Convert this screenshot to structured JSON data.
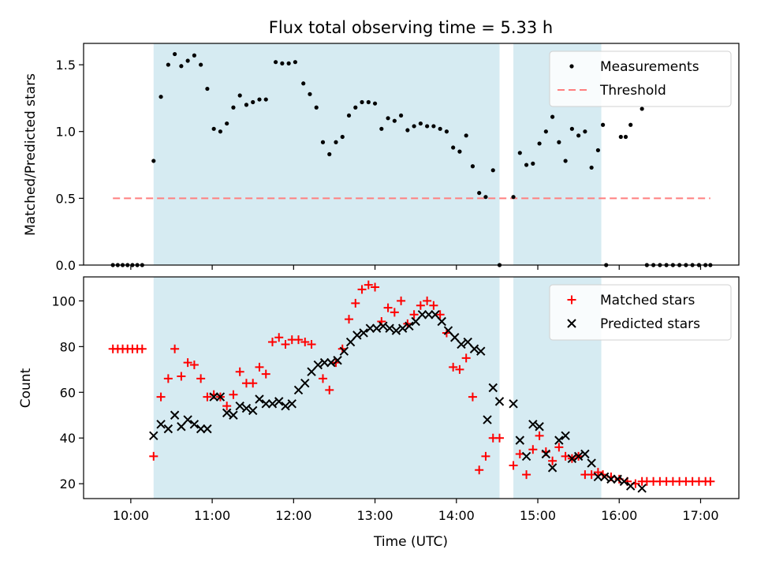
{
  "chart_data": [
    {
      "type": "scatter",
      "title": "Flux total observing time = 5.33 h",
      "xlabel": "",
      "ylabel": "Matched/Predicted stars",
      "xlim": [
        9.42,
        17.47
      ],
      "ylim": [
        0,
        1.66
      ],
      "yticks": [
        0.0,
        0.5,
        1.0,
        1.5
      ],
      "ytick_labels": [
        "0.0",
        "0.5",
        "1.0",
        "1.5"
      ],
      "legend": {
        "placement": "top-right",
        "entries": [
          "Measurements",
          "Threshold"
        ]
      },
      "shaded_intervals": [
        [
          10.28,
          14.53
        ],
        [
          14.7,
          15.78
        ]
      ],
      "threshold": {
        "name": "Threshold",
        "y": 0.5,
        "x": [
          9.78,
          17.12
        ],
        "color": "#ff7f7f"
      },
      "series": [
        {
          "name": "Measurements",
          "marker": "dot",
          "color": "#000000",
          "points": [
            [
              9.78,
              0
            ],
            [
              9.84,
              0
            ],
            [
              9.9,
              0
            ],
            [
              9.96,
              0
            ],
            [
              10.02,
              0
            ],
            [
              10.08,
              0
            ],
            [
              10.14,
              0
            ],
            [
              10.28,
              0.78
            ],
            [
              10.37,
              1.26
            ],
            [
              10.46,
              1.5
            ],
            [
              10.54,
              1.58
            ],
            [
              10.62,
              1.49
            ],
            [
              10.7,
              1.53
            ],
            [
              10.78,
              1.57
            ],
            [
              10.86,
              1.5
            ],
            [
              10.94,
              1.32
            ],
            [
              11.02,
              1.02
            ],
            [
              11.1,
              1.0
            ],
            [
              11.18,
              1.06
            ],
            [
              11.26,
              1.18
            ],
            [
              11.34,
              1.27
            ],
            [
              11.42,
              1.2
            ],
            [
              11.5,
              1.22
            ],
            [
              11.58,
              1.24
            ],
            [
              11.66,
              1.24
            ],
            [
              11.78,
              1.52
            ],
            [
              11.86,
              1.51
            ],
            [
              11.94,
              1.51
            ],
            [
              12.02,
              1.52
            ],
            [
              12.12,
              1.36
            ],
            [
              12.2,
              1.28
            ],
            [
              12.28,
              1.18
            ],
            [
              12.36,
              0.92
            ],
            [
              12.44,
              0.83
            ],
            [
              12.52,
              0.92
            ],
            [
              12.6,
              0.96
            ],
            [
              12.68,
              1.12
            ],
            [
              12.76,
              1.18
            ],
            [
              12.84,
              1.22
            ],
            [
              12.92,
              1.22
            ],
            [
              13.0,
              1.21
            ],
            [
              13.08,
              1.02
            ],
            [
              13.16,
              1.1
            ],
            [
              13.24,
              1.08
            ],
            [
              13.32,
              1.12
            ],
            [
              13.4,
              1.01
            ],
            [
              13.48,
              1.04
            ],
            [
              13.56,
              1.06
            ],
            [
              13.64,
              1.04
            ],
            [
              13.72,
              1.04
            ],
            [
              13.8,
              1.02
            ],
            [
              13.88,
              1.0
            ],
            [
              13.96,
              0.88
            ],
            [
              14.04,
              0.85
            ],
            [
              14.12,
              0.97
            ],
            [
              14.2,
              0.74
            ],
            [
              14.28,
              0.54
            ],
            [
              14.36,
              0.51
            ],
            [
              14.45,
              0.71
            ],
            [
              14.53,
              0
            ],
            [
              14.7,
              0.51
            ],
            [
              14.78,
              0.84
            ],
            [
              14.86,
              0.75
            ],
            [
              14.94,
              0.76
            ],
            [
              15.02,
              0.91
            ],
            [
              15.1,
              1.0
            ],
            [
              15.18,
              1.11
            ],
            [
              15.26,
              0.92
            ],
            [
              15.34,
              0.78
            ],
            [
              15.42,
              1.02
            ],
            [
              15.5,
              0.97
            ],
            [
              15.58,
              1.0
            ],
            [
              15.66,
              0.73
            ],
            [
              15.74,
              0.86
            ],
            [
              15.8,
              1.05
            ],
            [
              15.84,
              0
            ],
            [
              16.02,
              0.96
            ],
            [
              16.08,
              0.96
            ],
            [
              16.14,
              1.05
            ],
            [
              16.28,
              1.17
            ],
            [
              16.34,
              0
            ],
            [
              16.42,
              0
            ],
            [
              16.5,
              0
            ],
            [
              16.58,
              0
            ],
            [
              16.66,
              0
            ],
            [
              16.74,
              0
            ],
            [
              16.82,
              0
            ],
            [
              16.9,
              0
            ],
            [
              16.98,
              0
            ],
            [
              17.06,
              0
            ],
            [
              17.12,
              0
            ]
          ]
        }
      ]
    },
    {
      "type": "scatter",
      "title": "",
      "xlabel": "Time (UTC)",
      "ylabel": "Count",
      "xlim": [
        9.42,
        17.47
      ],
      "ylim": [
        13.5,
        110.5
      ],
      "xticks": [
        10,
        11,
        12,
        13,
        14,
        15,
        16,
        17
      ],
      "xtick_labels": [
        "10:00",
        "11:00",
        "12:00",
        "13:00",
        "14:00",
        "15:00",
        "16:00",
        "17:00"
      ],
      "yticks": [
        20,
        40,
        60,
        80,
        100
      ],
      "ytick_labels": [
        "20",
        "40",
        "60",
        "80",
        "100"
      ],
      "legend": {
        "placement": "top-right",
        "entries": [
          "Matched stars",
          "Predicted stars"
        ]
      },
      "shaded_intervals": [
        [
          10.28,
          14.53
        ],
        [
          14.7,
          15.78
        ]
      ],
      "series": [
        {
          "name": "Matched stars",
          "marker": "plus",
          "color": "#ff0000",
          "points": [
            [
              9.78,
              79
            ],
            [
              9.84,
              79
            ],
            [
              9.9,
              79
            ],
            [
              9.96,
              79
            ],
            [
              10.02,
              79
            ],
            [
              10.08,
              79
            ],
            [
              10.14,
              79
            ],
            [
              10.28,
              32
            ],
            [
              10.37,
              58
            ],
            [
              10.46,
              66
            ],
            [
              10.54,
              79
            ],
            [
              10.62,
              67
            ],
            [
              10.7,
              73
            ],
            [
              10.78,
              72
            ],
            [
              10.86,
              66
            ],
            [
              10.94,
              58
            ],
            [
              11.02,
              59
            ],
            [
              11.1,
              58
            ],
            [
              11.18,
              54
            ],
            [
              11.26,
              59
            ],
            [
              11.34,
              69
            ],
            [
              11.42,
              64
            ],
            [
              11.5,
              64
            ],
            [
              11.58,
              71
            ],
            [
              11.66,
              68
            ],
            [
              11.74,
              82
            ],
            [
              11.82,
              84
            ],
            [
              11.9,
              81
            ],
            [
              11.98,
              83
            ],
            [
              12.06,
              83
            ],
            [
              12.14,
              82
            ],
            [
              12.22,
              81
            ],
            [
              12.36,
              66
            ],
            [
              12.44,
              61
            ],
            [
              12.52,
              73
            ],
            [
              12.6,
              79
            ],
            [
              12.68,
              92
            ],
            [
              12.76,
              99
            ],
            [
              12.84,
              105
            ],
            [
              12.92,
              107
            ],
            [
              13.0,
              106
            ],
            [
              13.08,
              91
            ],
            [
              13.16,
              97
            ],
            [
              13.24,
              95
            ],
            [
              13.32,
              100
            ],
            [
              13.4,
              90
            ],
            [
              13.48,
              94
            ],
            [
              13.56,
              98
            ],
            [
              13.64,
              100
            ],
            [
              13.72,
              98
            ],
            [
              13.8,
              94
            ],
            [
              13.88,
              86
            ],
            [
              13.96,
              71
            ],
            [
              14.04,
              70
            ],
            [
              14.12,
              75
            ],
            [
              14.2,
              58
            ],
            [
              14.28,
              26
            ],
            [
              14.36,
              32
            ],
            [
              14.45,
              40
            ],
            [
              14.53,
              40
            ],
            [
              14.7,
              28
            ],
            [
              14.78,
              33
            ],
            [
              14.86,
              24
            ],
            [
              14.94,
              35
            ],
            [
              15.02,
              41
            ],
            [
              15.1,
              34
            ],
            [
              15.18,
              30
            ],
            [
              15.26,
              36
            ],
            [
              15.34,
              32
            ],
            [
              15.42,
              31
            ],
            [
              15.5,
              32
            ],
            [
              15.58,
              24
            ],
            [
              15.66,
              24
            ],
            [
              15.74,
              25
            ],
            [
              15.8,
              24
            ],
            [
              15.9,
              23
            ],
            [
              16.0,
              22
            ],
            [
              16.1,
              21
            ],
            [
              16.2,
              20
            ],
            [
              16.28,
              21
            ],
            [
              16.34,
              21
            ],
            [
              16.42,
              21
            ],
            [
              16.5,
              21
            ],
            [
              16.58,
              21
            ],
            [
              16.66,
              21
            ],
            [
              16.74,
              21
            ],
            [
              16.82,
              21
            ],
            [
              16.9,
              21
            ],
            [
              16.98,
              21
            ],
            [
              17.06,
              21
            ],
            [
              17.12,
              21
            ]
          ]
        },
        {
          "name": "Predicted stars",
          "marker": "x",
          "color": "#000000",
          "points": [
            [
              10.28,
              41
            ],
            [
              10.37,
              46
            ],
            [
              10.46,
              44
            ],
            [
              10.54,
              50
            ],
            [
              10.62,
              45
            ],
            [
              10.7,
              48
            ],
            [
              10.78,
              46
            ],
            [
              10.86,
              44
            ],
            [
              10.94,
              44
            ],
            [
              11.02,
              58
            ],
            [
              11.1,
              58
            ],
            [
              11.18,
              51
            ],
            [
              11.26,
              50
            ],
            [
              11.34,
              54
            ],
            [
              11.42,
              53
            ],
            [
              11.5,
              52
            ],
            [
              11.58,
              57
            ],
            [
              11.66,
              55
            ],
            [
              11.74,
              55
            ],
            [
              11.82,
              56
            ],
            [
              11.9,
              54
            ],
            [
              11.98,
              55
            ],
            [
              12.06,
              61
            ],
            [
              12.14,
              64
            ],
            [
              12.22,
              69
            ],
            [
              12.3,
              72
            ],
            [
              12.38,
              73
            ],
            [
              12.46,
              73
            ],
            [
              12.54,
              74
            ],
            [
              12.62,
              78
            ],
            [
              12.7,
              82
            ],
            [
              12.78,
              85
            ],
            [
              12.86,
              86
            ],
            [
              12.94,
              88
            ],
            [
              13.02,
              88
            ],
            [
              13.1,
              89
            ],
            [
              13.18,
              88
            ],
            [
              13.26,
              87
            ],
            [
              13.34,
              88
            ],
            [
              13.42,
              89
            ],
            [
              13.5,
              91
            ],
            [
              13.58,
              94
            ],
            [
              13.66,
              94
            ],
            [
              13.74,
              94
            ],
            [
              13.82,
              91
            ],
            [
              13.9,
              87
            ],
            [
              13.98,
              84
            ],
            [
              14.06,
              81
            ],
            [
              14.14,
              82
            ],
            [
              14.22,
              79
            ],
            [
              14.3,
              78
            ],
            [
              14.38,
              48
            ],
            [
              14.45,
              62
            ],
            [
              14.53,
              56
            ],
            [
              14.7,
              55
            ],
            [
              14.78,
              39
            ],
            [
              14.86,
              32
            ],
            [
              14.94,
              46
            ],
            [
              15.02,
              45
            ],
            [
              15.1,
              33
            ],
            [
              15.18,
              27
            ],
            [
              15.26,
              39
            ],
            [
              15.34,
              41
            ],
            [
              15.42,
              31
            ],
            [
              15.5,
              32
            ],
            [
              15.58,
              33
            ],
            [
              15.66,
              29
            ],
            [
              15.74,
              23
            ],
            [
              15.82,
              23
            ],
            [
              15.9,
              22
            ],
            [
              15.98,
              22
            ],
            [
              16.06,
              21
            ],
            [
              16.14,
              19
            ],
            [
              16.28,
              18
            ]
          ]
        }
      ]
    }
  ]
}
